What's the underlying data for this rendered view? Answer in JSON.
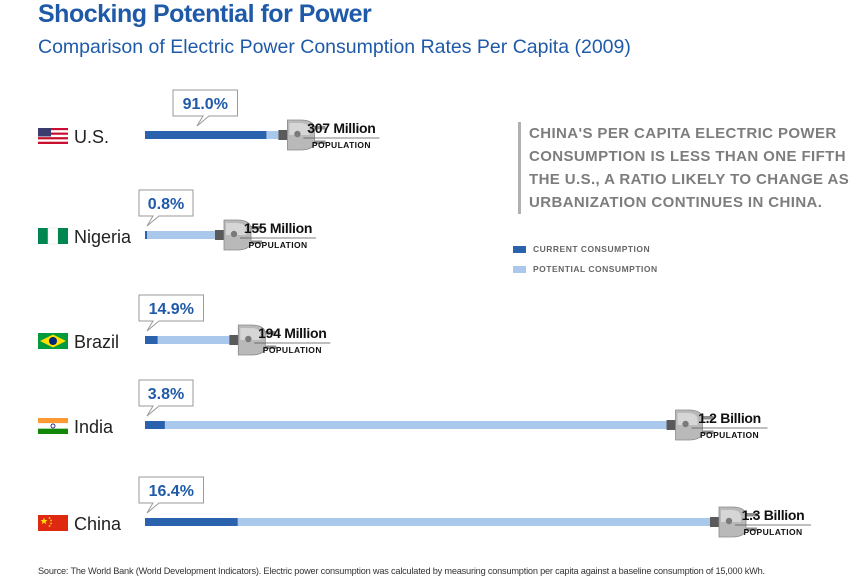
{
  "title": "Shocking Potential for Power",
  "subtitle": "Comparison of Electric Power Consumption Rates Per Capita (2009)",
  "callout": "CHINA'S PER CAPITA ELECTRIC POWER CONSUMPTION IS LESS THAN ONE FIFTH THE U.S., A RATIO LIKELY TO CHANGE AS URBANIZATION CONTINUES IN CHINA.",
  "legend": {
    "current": "CURRENT CONSUMPTION",
    "potential": "POTENTIAL CONSUMPTION"
  },
  "source": "Source: The World Bank (World Development Indicators). Electric power consumption was calculated by measuring consumption per capita against a baseline consumption of 15,000 kWh.",
  "colors": {
    "current": "#2a62ae",
    "potential": "#a9c8ec",
    "title": "#1f5aa8",
    "label_box_border": "#9a9a9a"
  },
  "chart_data": {
    "type": "bar",
    "categories": [
      "U.S.",
      "Nigeria",
      "Brazil",
      "India",
      "China"
    ],
    "series": [
      {
        "name": "CURRENT CONSUMPTION",
        "values": [
          91.0,
          0.8,
          14.9,
          3.8,
          16.4
        ]
      }
    ],
    "value_labels": [
      "91.0%",
      "0.8%",
      "14.9%",
      "3.8%",
      "16.4%"
    ],
    "population_millions": [
      307,
      155,
      194,
      1200,
      1300
    ],
    "population_labels": [
      "307 Million",
      "155 Million",
      "194 Million",
      "1.2 Billion",
      "1.3 Billion"
    ],
    "population_caption": "POPULATION",
    "flags": [
      "us-flag-icon",
      "nigeria-flag-icon",
      "brazil-flag-icon",
      "india-flag-icon",
      "china-flag-icon"
    ],
    "legend_position": "right",
    "grid": false
  }
}
